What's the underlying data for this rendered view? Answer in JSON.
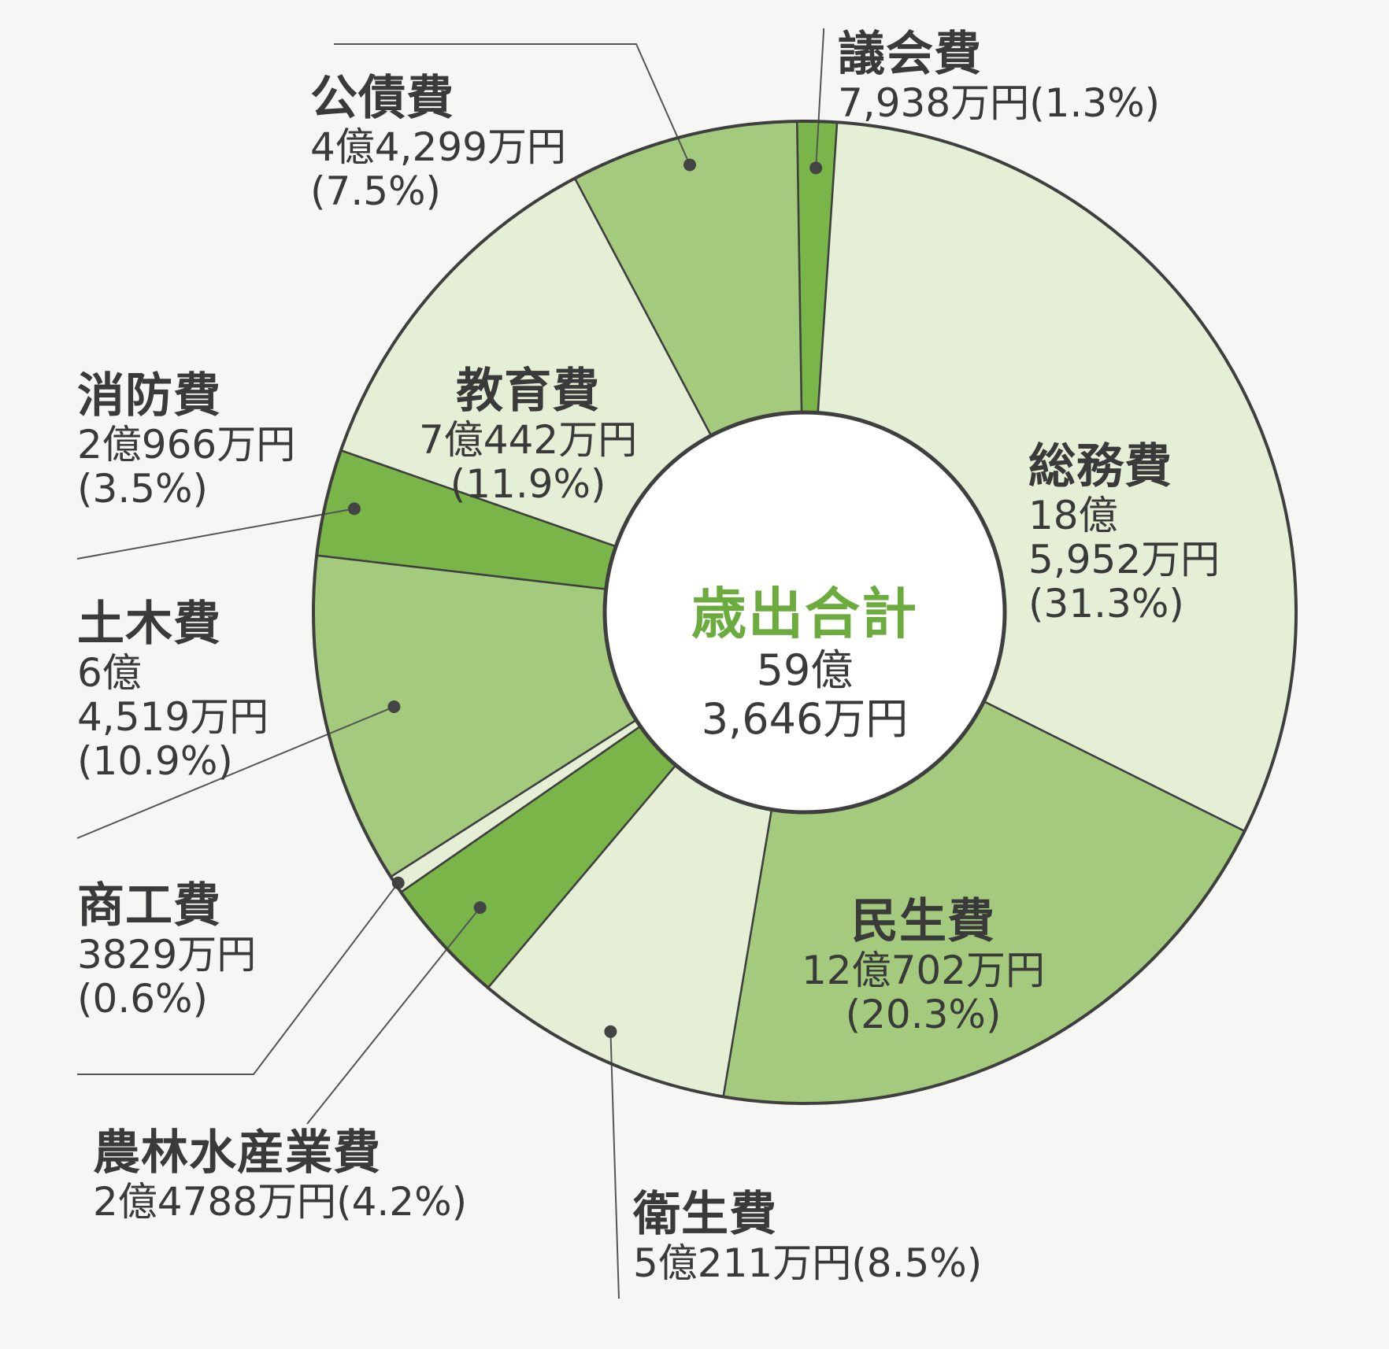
{
  "chart_data": {
    "type": "pie",
    "donut": true,
    "center": {
      "title": "歳出合計",
      "line1": "59億",
      "line2": "3,646万円"
    },
    "slices": [
      {
        "name": "議会費",
        "amount": "7,938万円",
        "percent": "(1.3%)",
        "value": 1.3,
        "color": "#79b548"
      },
      {
        "name": "総務費",
        "amount_1": "18億",
        "amount_2": "5,952万円",
        "percent": "(31.3%)",
        "value": 31.3,
        "color": "#e4efd6"
      },
      {
        "name": "民生費",
        "amount": "12億702万円",
        "percent": "(20.3%)",
        "value": 20.3,
        "color": "#a3ca7d"
      },
      {
        "name": "衛生費",
        "amount": "5億211万円",
        "percent": "(8.5%)",
        "value": 8.5,
        "color": "#e4efd6"
      },
      {
        "name": "農林水産業費",
        "amount": "2億4788万円",
        "percent": "(4.2%)",
        "value": 4.2,
        "color": "#79b548"
      },
      {
        "name": "商工費",
        "amount": "3829万円",
        "percent": "(0.6%)",
        "value": 0.6,
        "color": "#e4efd6"
      },
      {
        "name": "土木費",
        "amount_1": "6億",
        "amount_2": "4,519万円",
        "percent": "(10.9%)",
        "value": 10.9,
        "color": "#a3ca7d"
      },
      {
        "name": "消防費",
        "amount": "2億966万円",
        "percent": "(3.5%)",
        "value": 3.5,
        "color": "#79b548"
      },
      {
        "name": "教育費",
        "amount": "7億442万円",
        "percent": "(11.9%)",
        "value": 11.9,
        "color": "#e4efd6"
      },
      {
        "name": "公債費",
        "amount": "4億4,299万円",
        "percent": "(7.5%)",
        "value": 7.5,
        "color": "#a3ca7d"
      }
    ]
  }
}
